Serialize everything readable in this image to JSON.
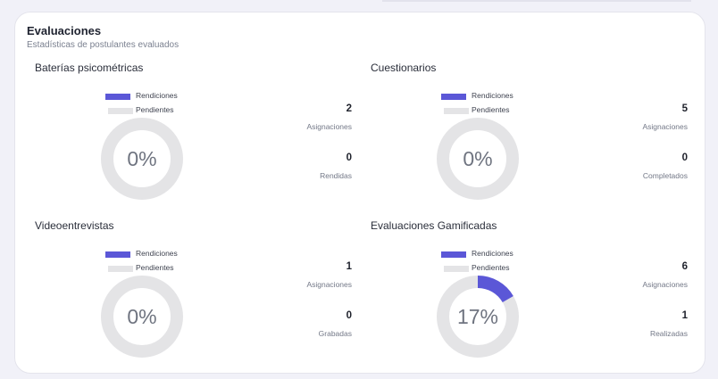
{
  "section": {
    "title": "Evaluaciones",
    "subtitle": "Estadísticas de postulantes evaluados"
  },
  "legend": {
    "rendiciones": "Rendiciones",
    "pendientes": "Pendientes"
  },
  "colors": {
    "rendiciones": "#5b57d7",
    "pendientes": "#e4e4e6"
  },
  "blocks": [
    {
      "title": "Baterías psicométricas",
      "percent_text": "0%",
      "fraction": 0,
      "stat1": {
        "value": "2",
        "label": "Asignaciones"
      },
      "stat2": {
        "value": "0",
        "label": "Rendidas"
      }
    },
    {
      "title": "Cuestionarios",
      "percent_text": "0%",
      "fraction": 0,
      "stat1": {
        "value": "5",
        "label": "Asignaciones"
      },
      "stat2": {
        "value": "0",
        "label": "Completados"
      }
    },
    {
      "title": "Videoentrevistas",
      "percent_text": "0%",
      "fraction": 0,
      "stat1": {
        "value": "1",
        "label": "Asignaciones"
      },
      "stat2": {
        "value": "0",
        "label": "Grabadas"
      }
    },
    {
      "title": "Evaluaciones Gamificadas",
      "percent_text": "17%",
      "fraction": 0.1667,
      "stat1": {
        "value": "6",
        "label": "Asignaciones"
      },
      "stat2": {
        "value": "1",
        "label": "Realizadas"
      }
    }
  ]
}
